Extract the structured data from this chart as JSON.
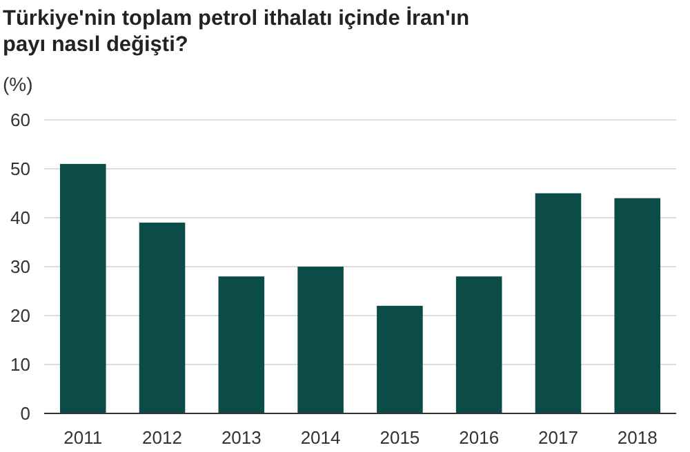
{
  "chart_data": {
    "type": "bar",
    "title": "Türkiye'nin toplam petrol ithalatı içinde İran'ın payı nasıl değişti?",
    "ylabel": "(%)",
    "categories": [
      "2011",
      "2012",
      "2013",
      "2014",
      "2015",
      "2016",
      "2017",
      "2018"
    ],
    "values": [
      51,
      39,
      28,
      30,
      22,
      28,
      45,
      44
    ],
    "color": "#0b4c48",
    "ylim": [
      0,
      60
    ],
    "yticks": [
      0,
      10,
      20,
      30,
      40,
      50,
      60
    ],
    "grid": "y"
  }
}
